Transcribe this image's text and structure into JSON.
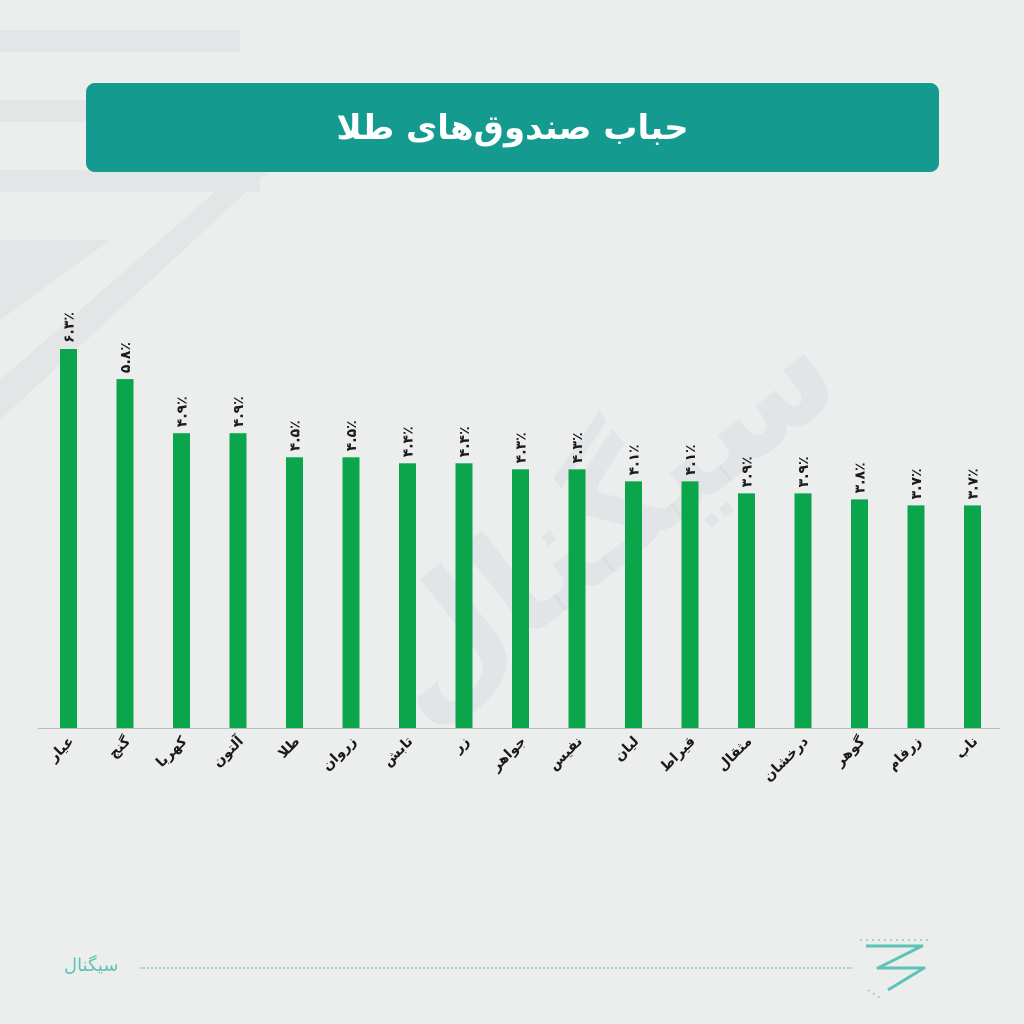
{
  "header": {
    "title": "حباب صندوق‌های طلا"
  },
  "watermark": {
    "text": "سیگنال"
  },
  "footer": {
    "brand": "سیگنال"
  },
  "colors": {
    "bar": "#0ba54b",
    "header": "#149a8e",
    "background": "#eceeee",
    "brand": "#5ec2b6"
  },
  "icons": {
    "brand_logo": "signal-logo-icon"
  },
  "chart_data": {
    "type": "bar",
    "title": "حباب صندوق‌های طلا",
    "xlabel": "",
    "ylabel": "",
    "categories": [
      "عیار",
      "گنج",
      "کهربا",
      "آلتون",
      "طلا",
      "زروان",
      "تابش",
      "زر",
      "جواهر",
      "نفیس",
      "لیان",
      "قیراط",
      "مثقال",
      "درخشان",
      "گوهر",
      "زرفام",
      "ناب"
    ],
    "values": [
      6.3,
      5.8,
      4.9,
      4.9,
      4.5,
      4.5,
      4.4,
      4.4,
      4.3,
      4.3,
      4.1,
      4.1,
      3.9,
      3.9,
      3.8,
      3.7,
      3.7
    ],
    "value_labels": [
      "۶.۳٪",
      "۵.۸٪",
      "۴.۹٪",
      "۴.۹٪",
      "۴.۵٪",
      "۴.۵٪",
      "۴.۴٪",
      "۴.۴٪",
      "۴.۳٪",
      "۴.۳٪",
      "۴.۱٪",
      "۴.۱٪",
      "۳.۹٪",
      "۳.۹٪",
      "۳.۸٪",
      "۳.۷٪",
      "۳.۷٪"
    ],
    "ylim": [
      0,
      6.3
    ],
    "grid": false,
    "legend": "none"
  }
}
